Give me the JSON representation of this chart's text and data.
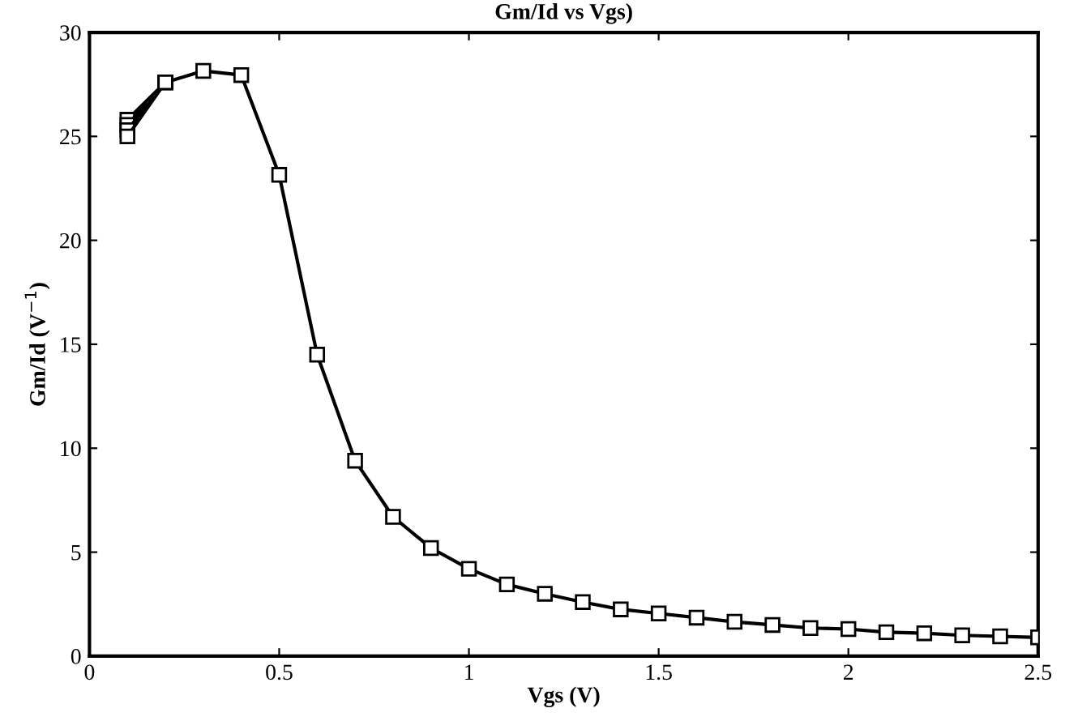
{
  "chart_data": {
    "type": "line",
    "title": "Gm/Id vs Vgs)",
    "xlabel": "Vgs (V)",
    "ylabel": "Gm/Id (V$^{−1}$)",
    "series": [
      {
        "color": "#000000",
        "x": [
          0.1,
          0.2,
          0.3,
          0.4,
          0.5,
          0.6,
          0.7,
          0.8,
          0.9,
          1.0,
          1.1,
          1.2,
          1.3,
          1.4,
          1.5,
          1.6,
          1.7,
          1.8,
          1.9,
          2.0,
          2.1,
          2.2,
          2.3,
          2.4,
          2.5
        ],
        "values": [
          25.0,
          27.6,
          28.15,
          27.95,
          23.15,
          14.5,
          9.4,
          6.7,
          5.2,
          4.2,
          3.45,
          3.0,
          2.6,
          2.25,
          2.05,
          1.85,
          1.65,
          1.5,
          1.35,
          1.3,
          1.15,
          1.1,
          1.0,
          0.95,
          0.9
        ]
      },
      {
        "color": "#000000",
        "x": [
          0.1,
          0.2
        ],
        "values": [
          25.3,
          27.6
        ]
      },
      {
        "color": "#000000",
        "x": [
          0.1,
          0.2
        ],
        "values": [
          25.55,
          27.6
        ]
      },
      {
        "color": "#000000",
        "x": [
          0.1,
          0.2
        ],
        "values": [
          25.8,
          27.6
        ]
      }
    ],
    "xlim": [
      0,
      2.5
    ],
    "xticks": [
      0,
      0.5,
      1,
      1.5,
      2,
      2.5
    ],
    "ylim": [
      0,
      30
    ],
    "yticks": [
      0,
      5,
      10,
      15,
      20,
      25,
      30
    ],
    "marker": "square",
    "line_style": "solid",
    "grid": false
  }
}
